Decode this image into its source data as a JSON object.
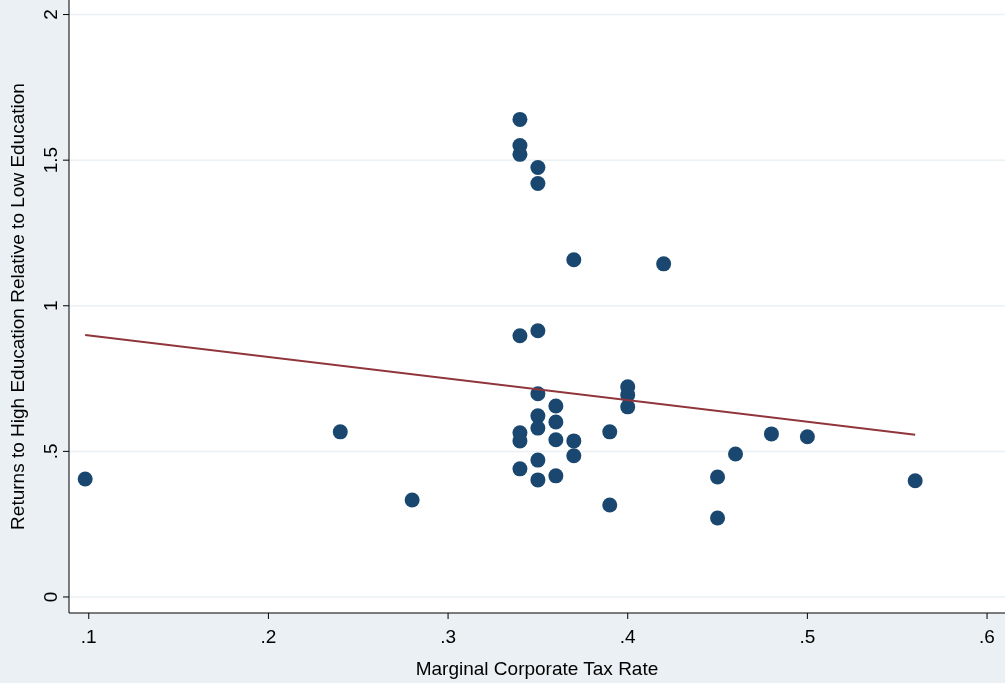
{
  "chart_data": {
    "type": "scatter",
    "xlabel": "Marginal Corporate Tax Rate",
    "ylabel": "Returns to High Education Relative to Low Education",
    "xlim": [
      0.089,
      0.61
    ],
    "ylim": [
      -0.055,
      2.05
    ],
    "xticks": [
      {
        "value": 0.1,
        "label": ".1"
      },
      {
        "value": 0.2,
        "label": ".2"
      },
      {
        "value": 0.3,
        "label": ".3"
      },
      {
        "value": 0.4,
        "label": ".4"
      },
      {
        "value": 0.5,
        "label": ".5"
      },
      {
        "value": 0.6,
        "label": ".6"
      }
    ],
    "yticks": [
      0,
      {
        "value": 0.5,
        "label": ".5"
      },
      1,
      1.5,
      2
    ],
    "grid": "y",
    "marker": "circle",
    "series": [
      {
        "color": "#1a476f",
        "x": [
          0.098,
          0.24,
          0.28,
          0.34,
          0.34,
          0.34,
          0.34,
          0.34,
          0.34,
          0.34,
          0.35,
          0.35,
          0.35,
          0.35,
          0.35,
          0.35,
          0.35,
          0.35,
          0.36,
          0.36,
          0.36,
          0.36,
          0.37,
          0.37,
          0.37,
          0.39,
          0.39,
          0.4,
          0.4,
          0.4,
          0.42,
          0.45,
          0.45,
          0.46,
          0.48,
          0.5,
          0.56
        ],
        "values": [
          0.405,
          0.567,
          0.333,
          1.64,
          1.55,
          1.52,
          0.897,
          0.564,
          0.536,
          0.44,
          1.475,
          1.42,
          0.914,
          0.698,
          0.622,
          0.58,
          0.47,
          0.402,
          0.656,
          0.601,
          0.54,
          0.416,
          1.158,
          0.536,
          0.485,
          0.567,
          0.316,
          0.722,
          0.694,
          0.653,
          1.144,
          0.412,
          0.271,
          0.491,
          0.56,
          0.55,
          0.399
        ]
      },
      {
        "type": "line",
        "color": "#90353b",
        "marker": "none",
        "x": [
          0.098,
          0.56
        ],
        "values": [
          0.9,
          0.557
        ]
      }
    ]
  }
}
